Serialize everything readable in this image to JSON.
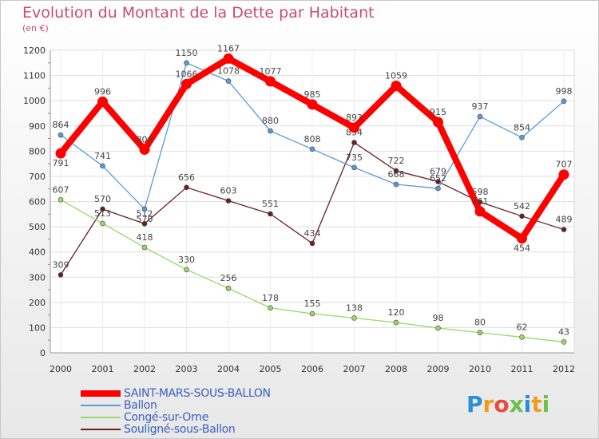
{
  "title": "Evolution du Montant de la Dette par Habitant",
  "unit_label": "(en €)",
  "logo": {
    "text": [
      "P",
      "r",
      "o",
      "x",
      "i",
      "t",
      "i"
    ],
    "colors": [
      "#2b8fd6",
      "#f59b1c",
      "#e84c3d",
      "#6cc04a",
      "#2b8fd6",
      "#f59b1c",
      "#6cc04a"
    ]
  },
  "chart_data": {
    "type": "line",
    "categories": [
      "2000",
      "2001",
      "2002",
      "2003",
      "2004",
      "2005",
      "2006",
      "2007",
      "2008",
      "2009",
      "2010",
      "2011",
      "2012"
    ],
    "ylim": [
      0,
      1200
    ],
    "yticks": [
      0,
      100,
      200,
      300,
      400,
      500,
      600,
      700,
      800,
      900,
      1000,
      1100,
      1200
    ],
    "grid": true,
    "legend_position": "bottom-left",
    "series": [
      {
        "name": "Souligné-sous-Ballon",
        "color": "#6b1f1f",
        "values": [
          309,
          570,
          512,
          656,
          603,
          551,
          434,
          834,
          722,
          679,
          598,
          542,
          489
        ]
      },
      {
        "name": "Congé-sur-Orne",
        "color": "#9bd66b",
        "values": [
          607,
          513,
          418,
          330,
          256,
          178,
          155,
          138,
          120,
          98,
          80,
          62,
          43
        ]
      },
      {
        "name": "Ballon",
        "color": "#5a9bd5",
        "values": [
          864,
          741,
          570,
          1150,
          1078,
          880,
          808,
          735,
          668,
          652,
          937,
          854,
          998
        ]
      },
      {
        "name": "SAINT-MARS-SOUS-BALLON",
        "color": "#ff0000",
        "values": [
          791,
          996,
          806,
          1066,
          1167,
          1077,
          985,
          893,
          1059,
          915,
          561,
          454,
          707
        ]
      }
    ]
  }
}
